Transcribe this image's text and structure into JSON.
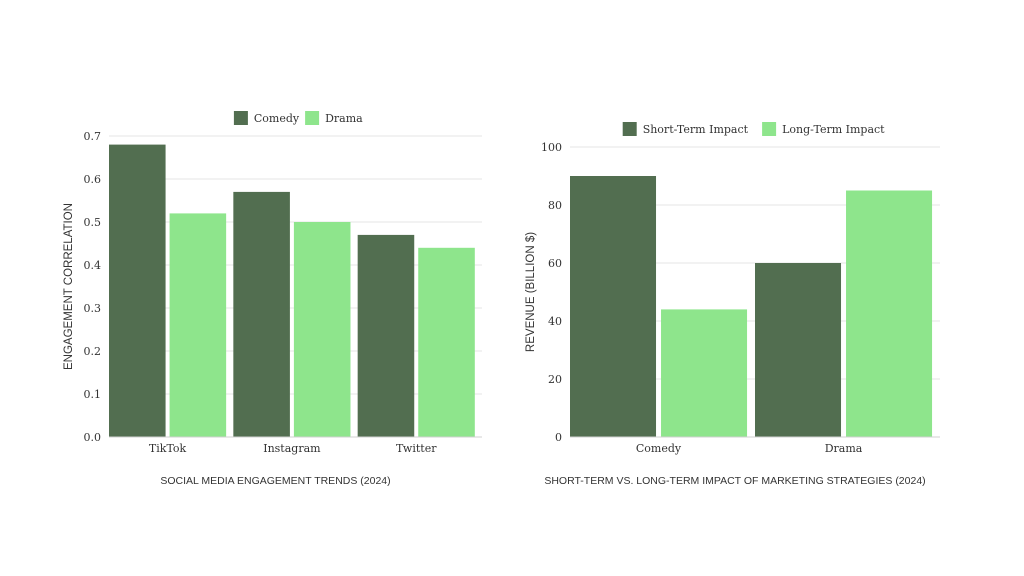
{
  "chart_data": [
    {
      "type": "bar",
      "title": "SOCIAL MEDIA ENGAGEMENT TRENDS (2024)",
      "xlabel": "",
      "ylabel": "ENGAGEMENT CORRELATION",
      "categories": [
        "TikTok",
        "Instagram",
        "Twitter"
      ],
      "series": [
        {
          "name": "Comedy",
          "color": "#526E50",
          "values": [
            0.68,
            0.57,
            0.47
          ]
        },
        {
          "name": "Drama",
          "color": "#8EE58C",
          "values": [
            0.52,
            0.5,
            0.44
          ]
        }
      ],
      "ylim": [
        0,
        0.7
      ],
      "yticks": [
        "0.0",
        "0.1",
        "0.2",
        "0.3",
        "0.4",
        "0.5",
        "0.6",
        "0.7"
      ],
      "grid": true,
      "legend": "top-center"
    },
    {
      "type": "bar",
      "title": "SHORT-TERM VS. LONG-TERM IMPACT OF MARKETING STRATEGIES (2024)",
      "xlabel": "",
      "ylabel": "REVENUE (BILLION $)",
      "categories": [
        "Comedy",
        "Drama"
      ],
      "series": [
        {
          "name": "Short-Term Impact",
          "color": "#526E50",
          "values": [
            90,
            60
          ]
        },
        {
          "name": "Long-Term Impact",
          "color": "#8EE58C",
          "values": [
            44,
            85
          ]
        }
      ],
      "ylim": [
        0,
        100
      ],
      "yticks": [
        "0",
        "20",
        "40",
        "60",
        "80",
        "100"
      ],
      "grid": true,
      "legend": "top-center"
    }
  ]
}
